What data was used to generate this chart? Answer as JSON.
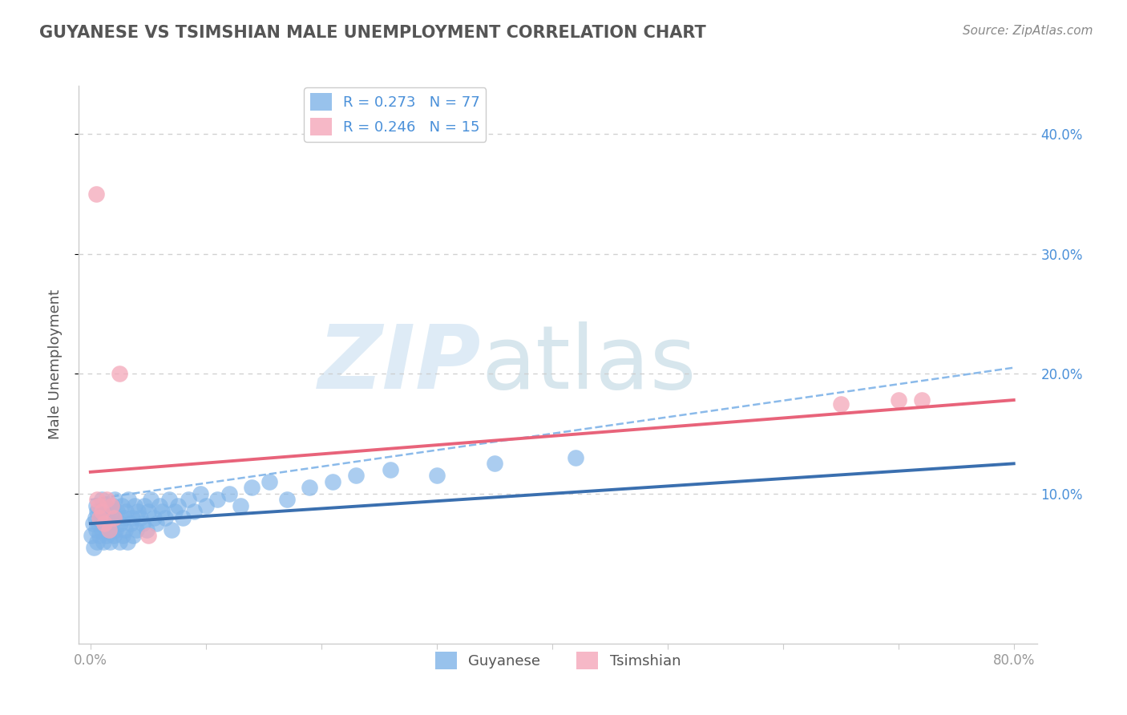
{
  "title": "GUYANESE VS TSIMSHIAN MALE UNEMPLOYMENT CORRELATION CHART",
  "source": "Source: ZipAtlas.com",
  "ylabel": "Male Unemployment",
  "xlim": [
    -0.01,
    0.82
  ],
  "ylim": [
    -0.025,
    0.44
  ],
  "legend_r1": "R = 0.273",
  "legend_n1": "N = 77",
  "legend_r2": "R = 0.246",
  "legend_n2": "N = 15",
  "blue_scatter_color": "#7EB3E8",
  "pink_scatter_color": "#F4A7B9",
  "blue_line_color": "#3A6FAF",
  "pink_line_color": "#E8637A",
  "dashed_line_color": "#7EB3E8",
  "grid_color": "#CCCCCC",
  "title_color": "#555555",
  "source_color": "#888888",
  "axis_color": "#999999",
  "right_tick_color": "#4A90D9",
  "watermark_zip_color": "#C8DFF0",
  "watermark_atlas_color": "#A8C8D8",
  "blue_line": [
    0.0,
    0.075,
    0.8,
    0.125
  ],
  "pink_line": [
    0.0,
    0.118,
    0.8,
    0.178
  ],
  "dash_line": [
    0.0,
    0.095,
    0.8,
    0.205
  ],
  "guyanese_x": [
    0.001,
    0.002,
    0.003,
    0.004,
    0.005,
    0.005,
    0.006,
    0.006,
    0.007,
    0.008,
    0.009,
    0.01,
    0.01,
    0.011,
    0.012,
    0.013,
    0.013,
    0.014,
    0.015,
    0.015,
    0.016,
    0.017,
    0.018,
    0.019,
    0.02,
    0.02,
    0.021,
    0.022,
    0.023,
    0.025,
    0.026,
    0.027,
    0.028,
    0.029,
    0.03,
    0.031,
    0.032,
    0.033,
    0.035,
    0.036,
    0.037,
    0.038,
    0.04,
    0.041,
    0.043,
    0.045,
    0.047,
    0.049,
    0.05,
    0.052,
    0.055,
    0.057,
    0.06,
    0.062,
    0.065,
    0.068,
    0.07,
    0.073,
    0.076,
    0.08,
    0.085,
    0.09,
    0.095,
    0.1,
    0.11,
    0.12,
    0.13,
    0.14,
    0.155,
    0.17,
    0.19,
    0.21,
    0.23,
    0.26,
    0.3,
    0.35,
    0.42
  ],
  "guyanese_y": [
    0.065,
    0.075,
    0.055,
    0.08,
    0.07,
    0.09,
    0.06,
    0.085,
    0.075,
    0.065,
    0.08,
    0.07,
    0.095,
    0.06,
    0.085,
    0.075,
    0.09,
    0.065,
    0.08,
    0.07,
    0.085,
    0.06,
    0.075,
    0.09,
    0.065,
    0.08,
    0.095,
    0.07,
    0.085,
    0.06,
    0.075,
    0.09,
    0.065,
    0.08,
    0.07,
    0.085,
    0.06,
    0.095,
    0.075,
    0.08,
    0.065,
    0.09,
    0.07,
    0.085,
    0.08,
    0.075,
    0.09,
    0.07,
    0.085,
    0.095,
    0.08,
    0.075,
    0.09,
    0.085,
    0.08,
    0.095,
    0.07,
    0.085,
    0.09,
    0.08,
    0.095,
    0.085,
    0.1,
    0.09,
    0.095,
    0.1,
    0.09,
    0.105,
    0.11,
    0.095,
    0.105,
    0.11,
    0.115,
    0.12,
    0.115,
    0.125,
    0.13
  ],
  "tsimshian_x": [
    0.005,
    0.006,
    0.007,
    0.008,
    0.01,
    0.012,
    0.014,
    0.016,
    0.018,
    0.02,
    0.025,
    0.05,
    0.65,
    0.7,
    0.72
  ],
  "tsimshian_y": [
    0.35,
    0.095,
    0.09,
    0.08,
    0.085,
    0.075,
    0.095,
    0.07,
    0.09,
    0.08,
    0.2,
    0.065,
    0.175,
    0.178,
    0.178
  ]
}
